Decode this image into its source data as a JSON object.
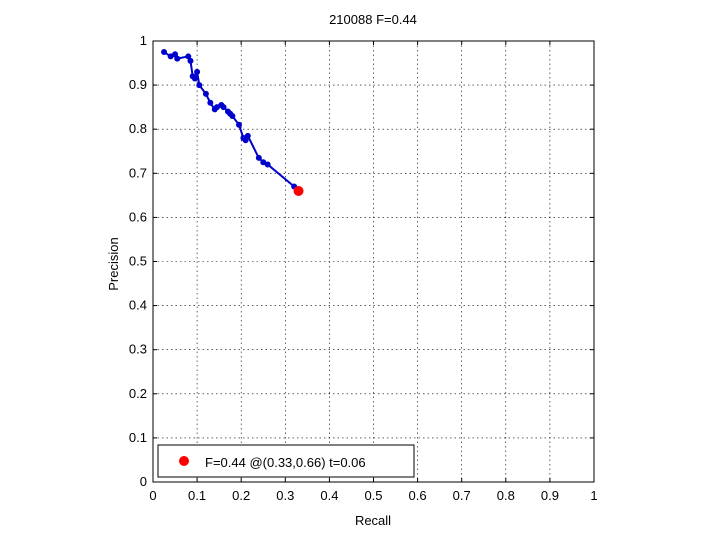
{
  "chart_data": {
    "type": "line",
    "title": "210088 F=0.44",
    "xlabel": "Recall",
    "ylabel": "Precision",
    "xlim": [
      0,
      1
    ],
    "ylim": [
      0,
      1
    ],
    "xticks": [
      "0",
      "0.1",
      "0.2",
      "0.3",
      "0.4",
      "0.5",
      "0.6",
      "0.7",
      "0.8",
      "0.9",
      "1"
    ],
    "yticks": [
      "0",
      "0.1",
      "0.2",
      "0.3",
      "0.4",
      "0.5",
      "0.6",
      "0.7",
      "0.8",
      "0.9",
      "1"
    ],
    "grid": true,
    "legend_position": "bottom-left",
    "series": [
      {
        "color": "#0000cc",
        "x": [
          0.025,
          0.04,
          0.05,
          0.055,
          0.08,
          0.085,
          0.09,
          0.095,
          0.1,
          0.105,
          0.12,
          0.13,
          0.14,
          0.145,
          0.155,
          0.16,
          0.17,
          0.175,
          0.18,
          0.195,
          0.205,
          0.21,
          0.215,
          0.24,
          0.25,
          0.26,
          0.32
        ],
        "y": [
          0.975,
          0.965,
          0.97,
          0.96,
          0.965,
          0.955,
          0.92,
          0.915,
          0.93,
          0.9,
          0.88,
          0.86,
          0.845,
          0.85,
          0.855,
          0.85,
          0.84,
          0.835,
          0.83,
          0.81,
          0.78,
          0.775,
          0.785,
          0.735,
          0.725,
          0.72,
          0.67
        ]
      },
      {
        "name": "F=0.44 @(0.33,0.66) t=0.06",
        "color": "#ff0000",
        "type": "marker",
        "x": [
          0.33
        ],
        "y": [
          0.66
        ]
      }
    ],
    "legend": {
      "label": "F=0.44 @(0.33,0.66) t=0.06"
    }
  }
}
